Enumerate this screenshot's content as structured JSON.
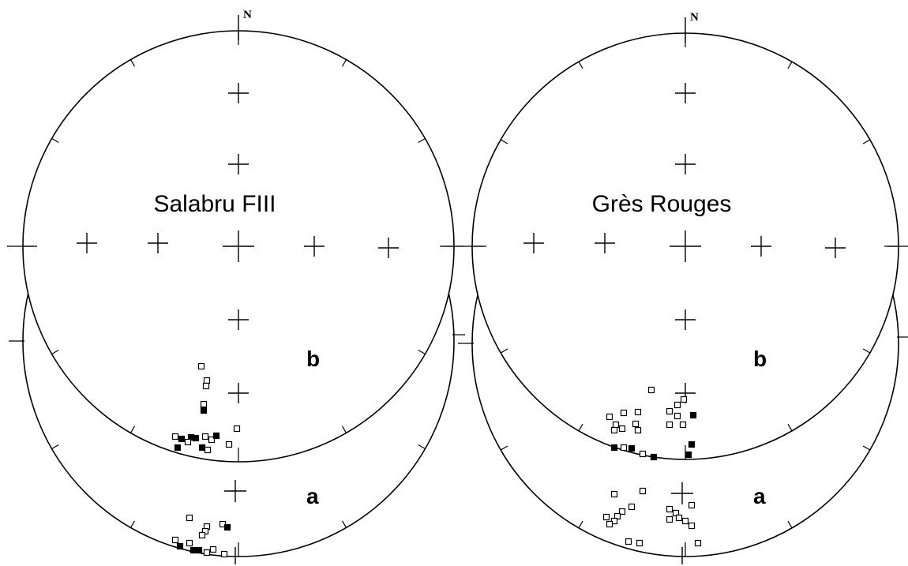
{
  "panels": [
    {
      "north": "N",
      "title": "Salabru FIII",
      "upper_label": "b",
      "lower_label": "a"
    },
    {
      "north": "N",
      "title": "Grès Rouges",
      "upper_label": "b",
      "lower_label": "a"
    }
  ]
}
